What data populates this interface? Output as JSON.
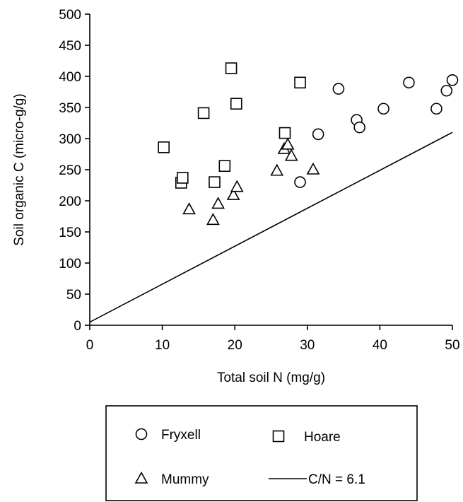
{
  "chart_data": {
    "type": "scatter",
    "xlabel": "Total soil N (mg/g)",
    "ylabel": "Soil organic C (micro-g/g)",
    "xlim": [
      0,
      50
    ],
    "ylim": [
      0,
      500
    ],
    "x_ticks": [
      "0",
      "10",
      "20",
      "30",
      "40",
      "50"
    ],
    "y_ticks": [
      "0",
      "50",
      "100",
      "150",
      "200",
      "250",
      "300",
      "350",
      "400",
      "450",
      "500"
    ],
    "grid": false,
    "legend_position": "below",
    "series": [
      {
        "name": "Fryxell",
        "marker": "circle",
        "points": [
          {
            "x": 29.0,
            "y": 230
          },
          {
            "x": 31.5,
            "y": 307
          },
          {
            "x": 34.3,
            "y": 380
          },
          {
            "x": 36.8,
            "y": 330
          },
          {
            "x": 37.2,
            "y": 318
          },
          {
            "x": 40.5,
            "y": 348
          },
          {
            "x": 44.0,
            "y": 390
          },
          {
            "x": 47.8,
            "y": 348
          },
          {
            "x": 49.2,
            "y": 377
          },
          {
            "x": 50.0,
            "y": 394
          }
        ]
      },
      {
        "name": "Hoare",
        "marker": "square",
        "points": [
          {
            "x": 10.2,
            "y": 286
          },
          {
            "x": 12.6,
            "y": 229
          },
          {
            "x": 12.8,
            "y": 237
          },
          {
            "x": 15.7,
            "y": 341
          },
          {
            "x": 17.2,
            "y": 230
          },
          {
            "x": 18.6,
            "y": 256
          },
          {
            "x": 19.5,
            "y": 413
          },
          {
            "x": 20.2,
            "y": 356
          },
          {
            "x": 26.9,
            "y": 309
          },
          {
            "x": 29.0,
            "y": 390
          }
        ]
      },
      {
        "name": "Mummy",
        "marker": "triangle",
        "points": [
          {
            "x": 13.7,
            "y": 186
          },
          {
            "x": 17.0,
            "y": 169
          },
          {
            "x": 17.7,
            "y": 195
          },
          {
            "x": 19.8,
            "y": 209
          },
          {
            "x": 20.3,
            "y": 222
          },
          {
            "x": 25.8,
            "y": 248
          },
          {
            "x": 26.8,
            "y": 283
          },
          {
            "x": 27.3,
            "y": 290
          },
          {
            "x": 27.8,
            "y": 272
          },
          {
            "x": 30.8,
            "y": 250
          }
        ]
      },
      {
        "name": "C/N = 6.1",
        "marker": "line",
        "points": [
          {
            "x": 0,
            "y": 5
          },
          {
            "x": 50,
            "y": 310
          }
        ]
      }
    ]
  }
}
